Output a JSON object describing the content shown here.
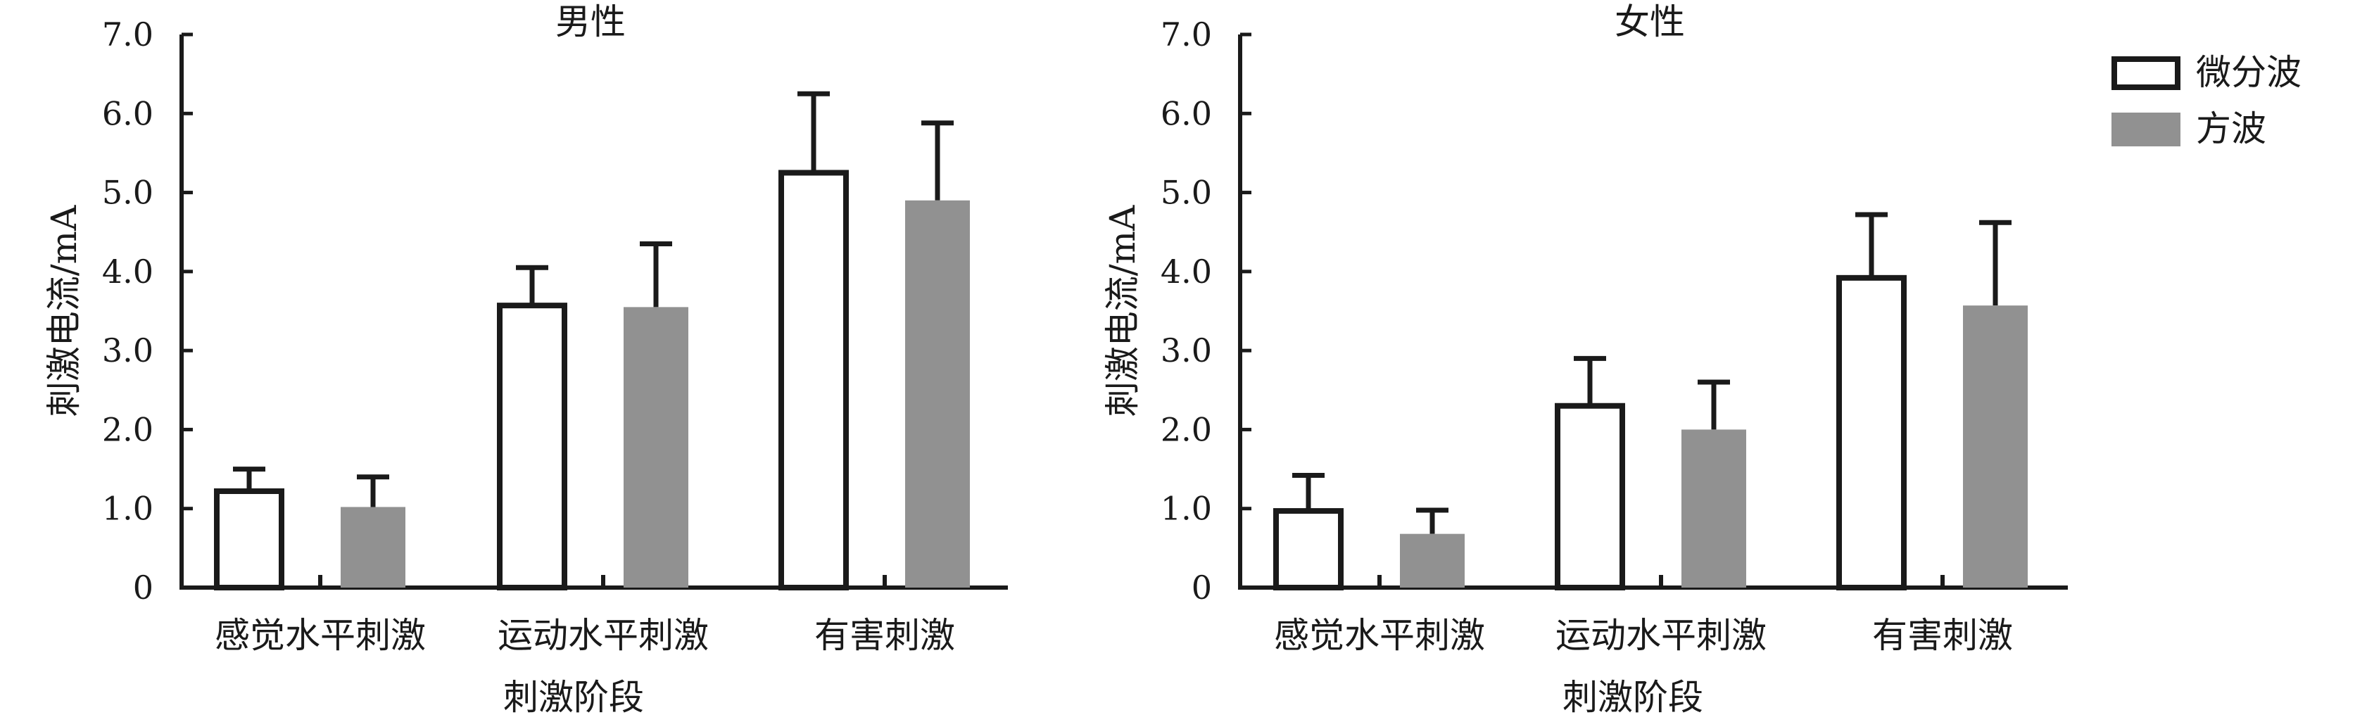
{
  "chart_data": [
    {
      "type": "bar",
      "title": "男性",
      "xlabel": "刺激阶段",
      "ylabel": "刺激电流/mA",
      "ylim": [
        0,
        7.0
      ],
      "yticks": [
        "0",
        "1.0",
        "2.0",
        "3.0",
        "4.0",
        "5.0",
        "6.0",
        "7.0"
      ],
      "categories": [
        "感觉水平刺激",
        "运动水平刺激",
        "有害刺激"
      ],
      "error_bars": "one-sided (upper)",
      "series": [
        {
          "name": "微分波",
          "values": [
            1.22,
            3.57,
            5.25
          ],
          "errors": [
            0.28,
            0.48,
            1.0
          ],
          "style": "outline"
        },
        {
          "name": "方波",
          "values": [
            1.02,
            3.55,
            4.9
          ],
          "errors": [
            0.38,
            0.8,
            0.98
          ],
          "style": "filled"
        }
      ]
    },
    {
      "type": "bar",
      "title": "女性",
      "xlabel": "刺激阶段",
      "ylabel": "刺激电流/mA",
      "ylim": [
        0,
        7.0
      ],
      "yticks": [
        "0",
        "1.0",
        "2.0",
        "3.0",
        "4.0",
        "5.0",
        "6.0",
        "7.0"
      ],
      "categories": [
        "感觉水平刺激",
        "运动水平刺激",
        "有害刺激"
      ],
      "error_bars": "one-sided (upper)",
      "series": [
        {
          "name": "微分波",
          "values": [
            0.97,
            2.3,
            3.92
          ],
          "errors": [
            0.45,
            0.6,
            0.8
          ],
          "style": "outline"
        },
        {
          "name": "方波",
          "values": [
            0.68,
            2.0,
            3.57
          ],
          "errors": [
            0.3,
            0.6,
            1.05
          ],
          "style": "filled"
        }
      ]
    }
  ],
  "legend": {
    "placement": "top-right",
    "items": [
      {
        "label": "微分波",
        "style": "outline"
      },
      {
        "label": "方波",
        "style": "filled"
      }
    ]
  },
  "colors": {
    "outline_stroke": "#1a1a1a",
    "outline_fill": "#ffffff",
    "filled": "#919191",
    "axis": "#1a1a1a"
  }
}
